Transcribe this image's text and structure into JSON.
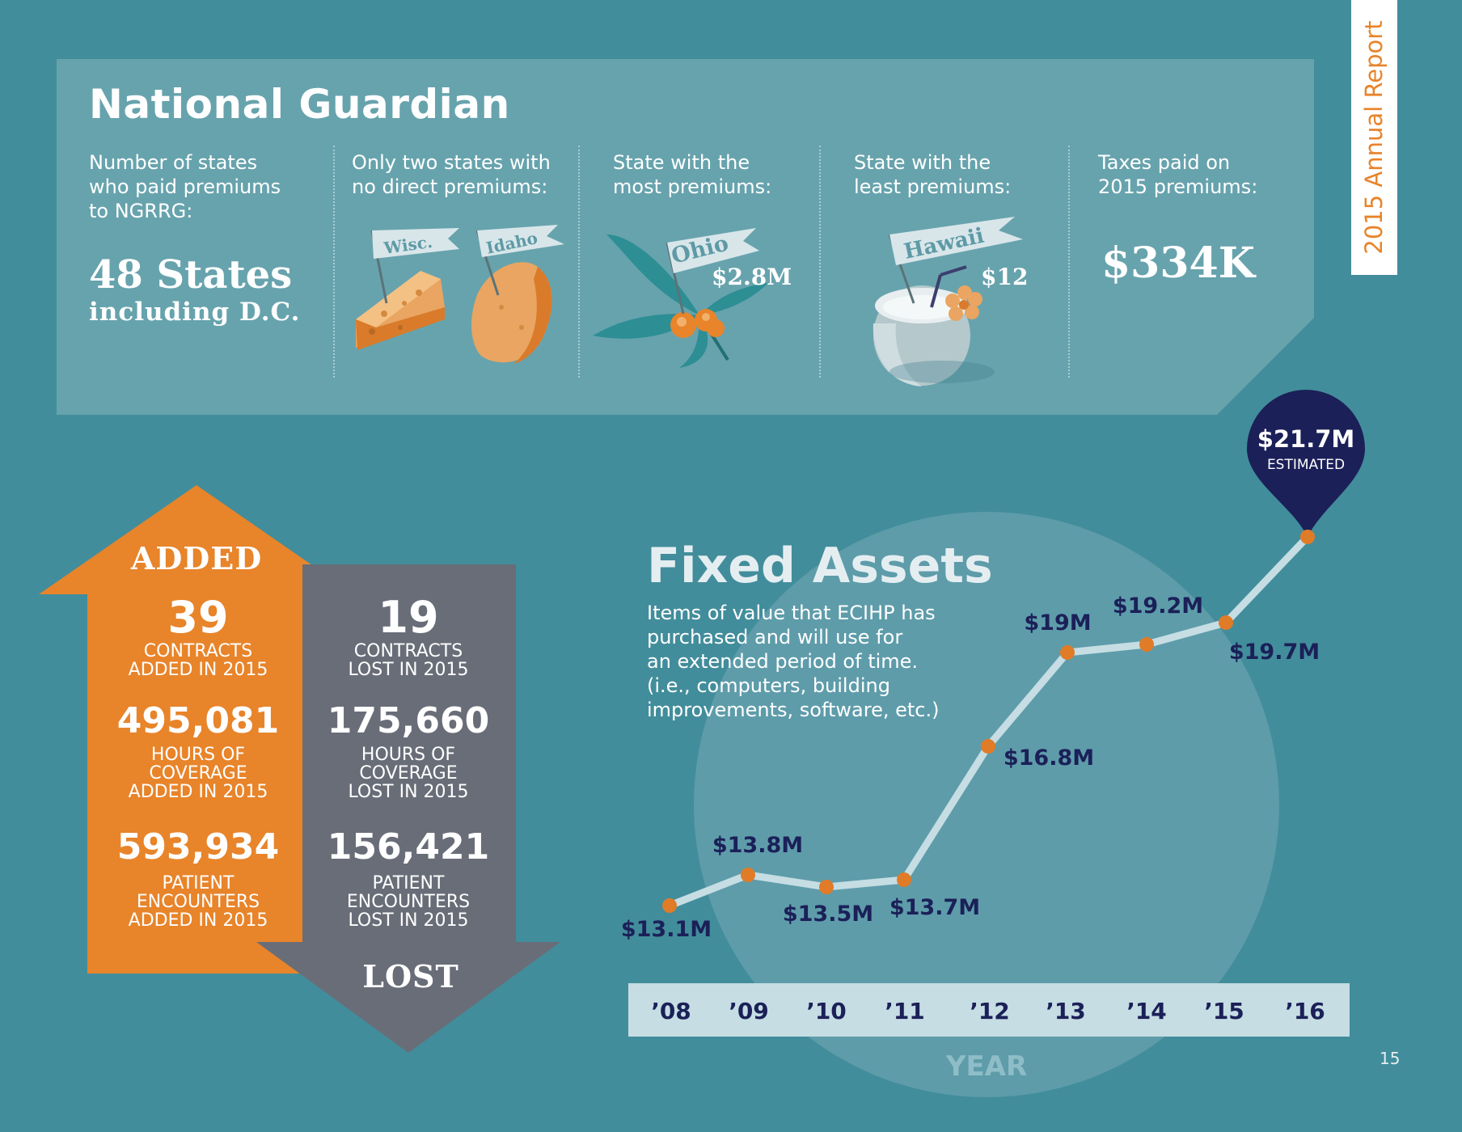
{
  "side_tab": {
    "label": "2015 Annual Report"
  },
  "national_guardian": {
    "title": "National Guardian",
    "columns": [
      {
        "label_lines": [
          "Number of states",
          "who paid premiums",
          "to NGRRG:"
        ],
        "value": "48 States",
        "subvalue": "including D.C."
      },
      {
        "label_lines": [
          "Only two states with",
          "no direct premiums:"
        ],
        "flags": [
          "Wisc.",
          "Idaho"
        ]
      },
      {
        "label_lines": [
          "State with the",
          "most premiums:"
        ],
        "flag": "Ohio",
        "value": "$2.8M"
      },
      {
        "label_lines": [
          "State with the",
          "least premiums:"
        ],
        "flag": "Hawaii",
        "value": "$12"
      },
      {
        "label_lines": [
          "Taxes paid on",
          "2015 premiums:"
        ],
        "value": "$334K"
      }
    ]
  },
  "contracts": {
    "added": {
      "label": "ADDED",
      "stats": [
        {
          "number": "39",
          "caption_lines": [
            "CONTRACTS",
            "ADDED IN 2015"
          ]
        },
        {
          "number": "495,081",
          "caption_lines": [
            "HOURS OF",
            "COVERAGE",
            "ADDED IN 2015"
          ]
        },
        {
          "number": "593,934",
          "caption_lines": [
            "PATIENT",
            "ENCOUNTERS",
            "ADDED IN 2015"
          ]
        }
      ]
    },
    "lost": {
      "label": "LOST",
      "stats": [
        {
          "number": "19",
          "caption_lines": [
            "CONTRACTS",
            "LOST IN 2015"
          ]
        },
        {
          "number": "175,660",
          "caption_lines": [
            "HOURS OF",
            "COVERAGE",
            "LOST IN 2015"
          ]
        },
        {
          "number": "156,421",
          "caption_lines": [
            "PATIENT",
            "ENCOUNTERS",
            "LOST IN 2015"
          ]
        }
      ]
    }
  },
  "fixed_assets": {
    "title": "Fixed Assets",
    "description_lines": [
      "Items of value that ECIHP has",
      "purchased and will use for",
      "an extended period of time.",
      "(i.e., computers, building",
      "improvements, software, etc.)"
    ]
  },
  "chart_data": {
    "type": "line",
    "title": "Fixed Assets",
    "xlabel": "YEAR",
    "ylabel": "",
    "categories": [
      "’08",
      "’09",
      "’10",
      "’11",
      "’12",
      "’13",
      "’14",
      "’15",
      "’16"
    ],
    "values": [
      13.1,
      13.8,
      13.5,
      13.7,
      16.8,
      19.0,
      19.2,
      19.7,
      21.7
    ],
    "value_labels": [
      "$13.1M",
      "$13.8M",
      "$13.5M",
      "$13.7M",
      "$16.8M",
      "$19M",
      "$19.2M",
      "$19.7M",
      "$21.7M"
    ],
    "estimated_label": "ESTIMATED",
    "estimated_index": 8,
    "ylim": [
      12,
      22
    ],
    "colors": {
      "line": "#c5dde3",
      "point": "#e07b28",
      "label": "#1b2058",
      "pin": "#1b2058",
      "axis_band": "#c5dde3"
    }
  },
  "page_number": "15"
}
